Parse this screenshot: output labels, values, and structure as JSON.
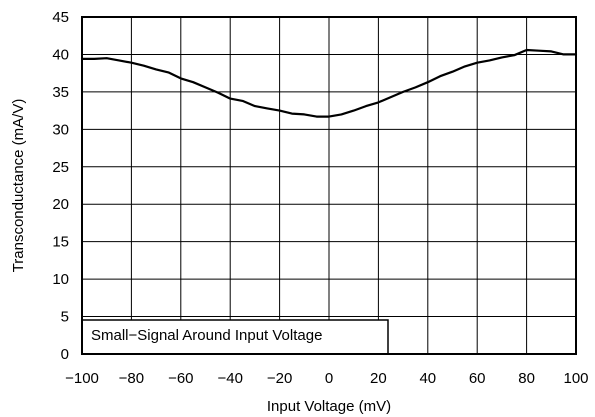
{
  "chart_data": {
    "type": "line",
    "xlabel": "Input Voltage (mV)",
    "ylabel": "Transconductance (mA/V)",
    "annotation": "Small−Signal Around Input Voltage",
    "xlim": [
      -100,
      100
    ],
    "ylim": [
      0,
      45
    ],
    "x_ticks": [
      -100,
      -80,
      -60,
      -40,
      -20,
      0,
      20,
      40,
      60,
      80,
      100
    ],
    "x_tick_labels": [
      "−100",
      "−80",
      "−60",
      "−40",
      "−20",
      "0",
      "20",
      "40",
      "60",
      "80",
      "100"
    ],
    "y_ticks": [
      0,
      5,
      10,
      15,
      20,
      25,
      30,
      35,
      40,
      45
    ],
    "y_tick_labels": [
      "0",
      "5",
      "10",
      "15",
      "20",
      "25",
      "30",
      "35",
      "40",
      "45"
    ],
    "grid": true,
    "series": [
      {
        "x": [
          -100,
          -95,
          -90,
          -85,
          -80,
          -75,
          -70,
          -65,
          -60,
          -55,
          -50,
          -45,
          -40,
          -35,
          -30,
          -25,
          -20,
          -15,
          -10,
          -5,
          0,
          5,
          10,
          15,
          20,
          25,
          30,
          35,
          40,
          45,
          50,
          55,
          60,
          65,
          70,
          75,
          80,
          85,
          90,
          95,
          100
        ],
        "y": [
          39.4,
          39.4,
          39.5,
          39.2,
          38.9,
          38.5,
          38.0,
          37.6,
          36.8,
          36.3,
          35.6,
          34.9,
          34.1,
          33.8,
          33.1,
          32.8,
          32.5,
          32.1,
          32.0,
          31.7,
          31.7,
          32.0,
          32.5,
          33.1,
          33.6,
          34.3,
          35.0,
          35.6,
          36.3,
          37.1,
          37.7,
          38.4,
          38.9,
          39.2,
          39.6,
          39.9,
          40.6,
          40.5,
          40.4,
          40.0,
          40.0
        ]
      }
    ]
  }
}
